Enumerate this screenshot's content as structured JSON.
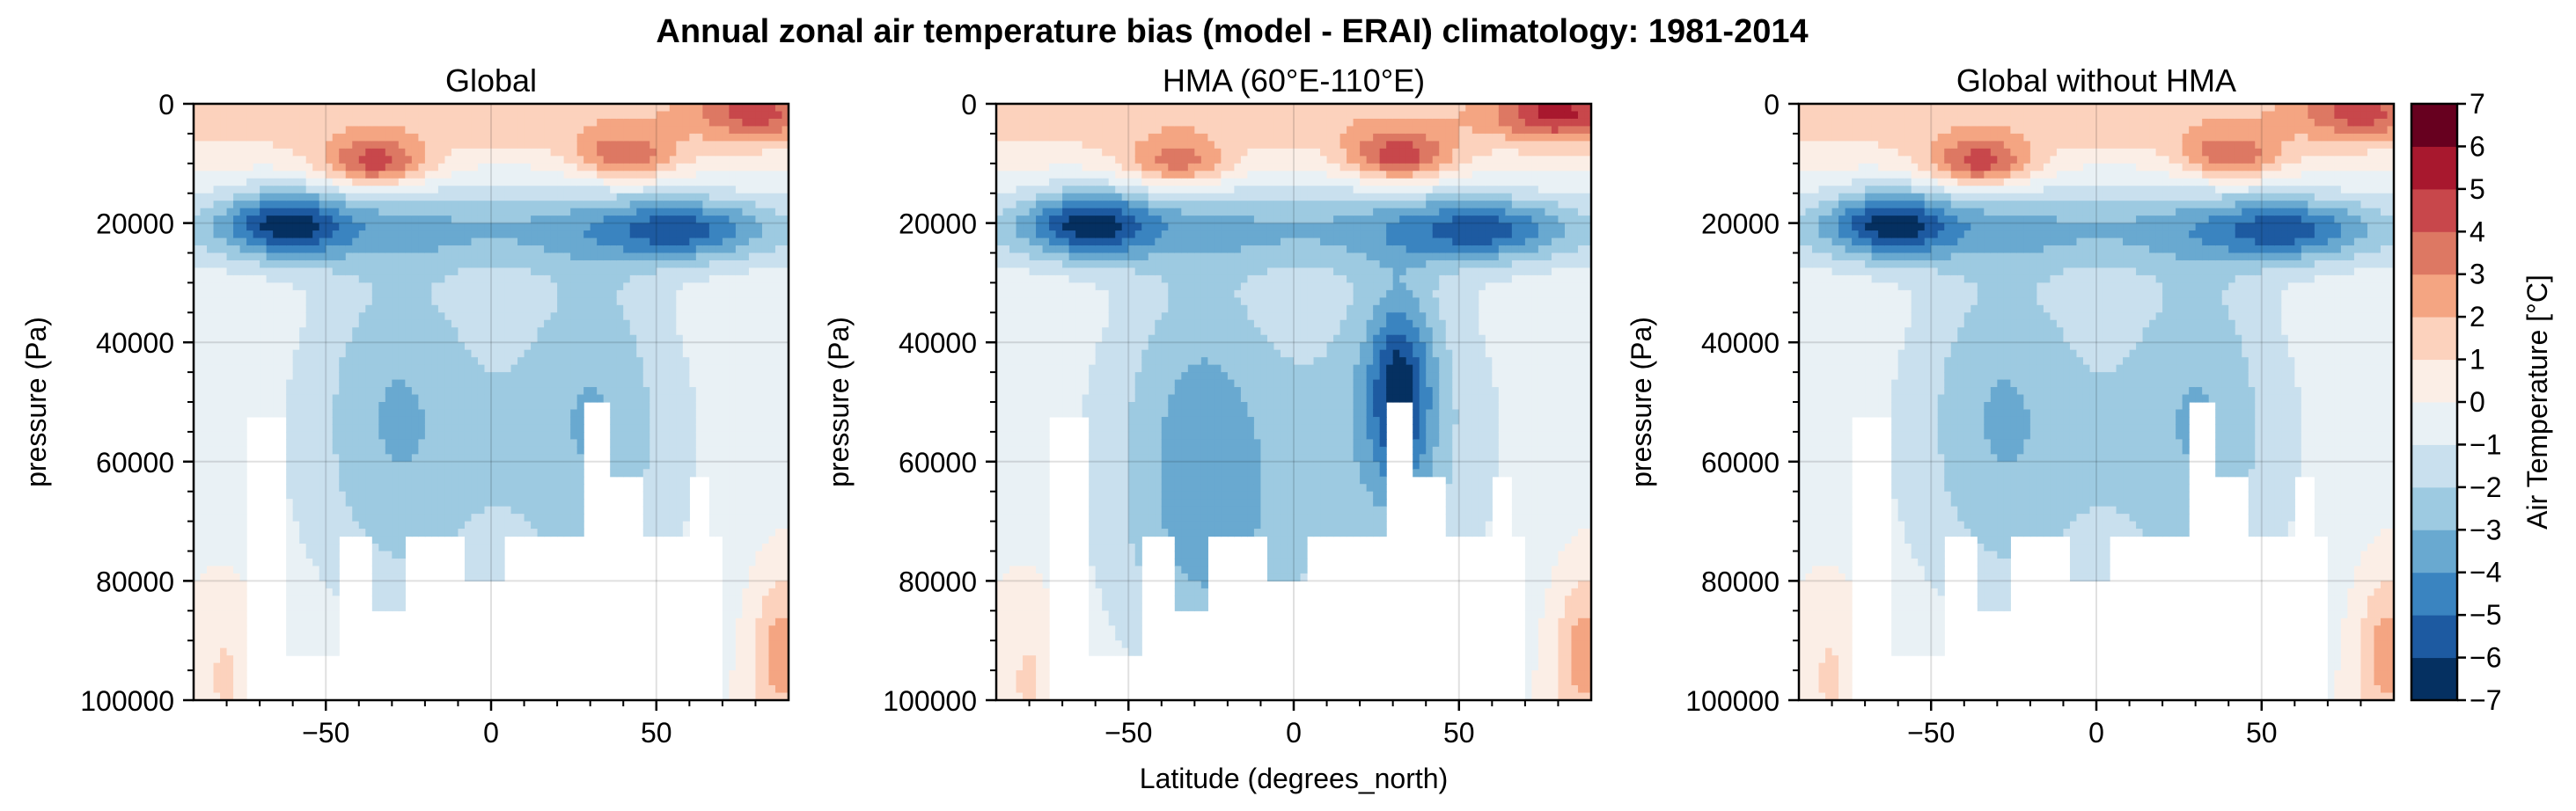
{
  "figure": {
    "title": "Annual zonal air temperature bias (model - ERAI) climatology: 1981-2014"
  },
  "colorbar": {
    "label": "Air Temperature [°C]",
    "levels": [
      -7,
      -6,
      -5,
      -4,
      -3,
      -2,
      -1,
      0,
      1,
      2,
      3,
      4,
      5,
      6,
      7
    ],
    "tick_labels": [
      "−7",
      "−6",
      "−5",
      "−4",
      "−3",
      "−2",
      "−1",
      "0",
      "1",
      "2",
      "3",
      "4",
      "5",
      "6",
      "7"
    ],
    "colors": [
      "#053061",
      "#1d5aa1",
      "#3a84c0",
      "#69a9d0",
      "#9dcae1",
      "#c9e0ee",
      "#e9f1f5",
      "#fbeee6",
      "#fcd2bd",
      "#f4a582",
      "#dd7863",
      "#c8474b",
      "#a8182e",
      "#67001f"
    ]
  },
  "chart_data": [
    {
      "type": "heatmap",
      "subtype": "filled-contour",
      "title": "Global",
      "xlabel": "",
      "ylabel": "pressure (Pa)",
      "xlim": [
        -90,
        90
      ],
      "ylim": [
        100000,
        0
      ],
      "y_inverted": true,
      "xticks": [
        -50,
        0,
        50
      ],
      "xtick_labels": [
        "−50",
        "0",
        "50"
      ],
      "yticks": [
        0,
        20000,
        40000,
        60000,
        80000,
        100000
      ],
      "ytick_labels": [
        "0",
        "20000",
        "40000",
        "60000",
        "80000",
        "100000"
      ],
      "grid": true,
      "units": "°C",
      "features": {
        "strat_warm_max": 5,
        "cold_core": {
          "lat": -62,
          "pressure": 20000,
          "value": -6
        },
        "warm_cells": [
          {
            "lat": -35,
            "pressure": 10000,
            "value": 5
          },
          {
            "lat": 40,
            "pressure": 9000,
            "value": 4
          }
        ],
        "trop_min": -3,
        "masked_below_surface": true
      }
    },
    {
      "type": "heatmap",
      "subtype": "filled-contour",
      "title": "HMA (60°E-110°E)",
      "xlabel": "Latitude (degrees_north)",
      "ylabel": "pressure (Pa)",
      "xlim": [
        -90,
        90
      ],
      "ylim": [
        100000,
        0
      ],
      "y_inverted": true,
      "xticks": [
        -50,
        0,
        50
      ],
      "xtick_labels": [
        "−50",
        "0",
        "50"
      ],
      "yticks": [
        0,
        20000,
        40000,
        60000,
        80000,
        100000
      ],
      "ytick_labels": [
        "0",
        "20000",
        "40000",
        "60000",
        "80000",
        "100000"
      ],
      "grid": true,
      "units": "°C",
      "features": {
        "strat_warm_max": 6,
        "cold_core": {
          "lat": -62,
          "pressure": 20000,
          "value": -6
        },
        "warm_cells": [
          {
            "lat": -35,
            "pressure": 10000,
            "value": 4
          },
          {
            "lat": 32,
            "pressure": 9000,
            "value": 5
          }
        ],
        "trop_min": -6,
        "masked_below_surface": true
      }
    },
    {
      "type": "heatmap",
      "subtype": "filled-contour",
      "title": "Global without HMA",
      "xlabel": "",
      "ylabel": "pressure (Pa)",
      "xlim": [
        -90,
        90
      ],
      "ylim": [
        100000,
        0
      ],
      "y_inverted": true,
      "xticks": [
        -50,
        0,
        50
      ],
      "xtick_labels": [
        "−50",
        "0",
        "50"
      ],
      "yticks": [
        0,
        20000,
        40000,
        60000,
        80000,
        100000
      ],
      "ytick_labels": [
        "0",
        "20000",
        "40000",
        "60000",
        "80000",
        "100000"
      ],
      "grid": true,
      "units": "°C",
      "features": {
        "strat_warm_max": 5,
        "cold_core": {
          "lat": -62,
          "pressure": 20000,
          "value": -6
        },
        "warm_cells": [
          {
            "lat": -35,
            "pressure": 10000,
            "value": 5
          },
          {
            "lat": 40,
            "pressure": 9000,
            "value": 4
          }
        ],
        "trop_min": -3,
        "masked_below_surface": true
      }
    }
  ]
}
